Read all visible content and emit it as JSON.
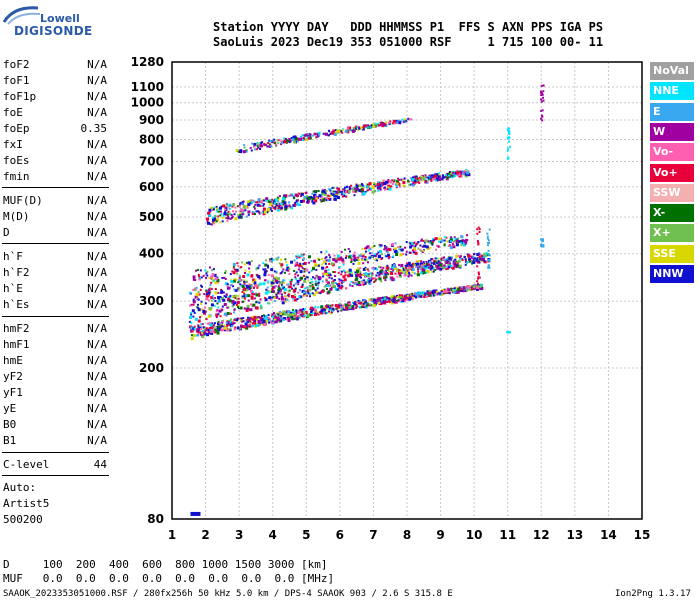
{
  "logo": {
    "top": "Lowell",
    "bottom": "DIGISONDE"
  },
  "header": {
    "row1": "Station YYYY DAY   DDD HHMMSS P1  FFS S AXN PPS IGA PS",
    "row2": "SaoLuis 2023 Dec19 353 051000 RSF     1 715 100 00- 11"
  },
  "params": [
    {
      "name": "foF2",
      "value": "N/A"
    },
    {
      "name": "foF1",
      "value": "N/A"
    },
    {
      "name": "foF1p",
      "value": "N/A"
    },
    {
      "name": "foE",
      "value": "N/A"
    },
    {
      "name": "foEp",
      "value": "0.35"
    },
    {
      "name": "fxI",
      "value": "N/A"
    },
    {
      "name": "foEs",
      "value": "N/A"
    },
    {
      "name": "fmin",
      "value": "N/A"
    },
    {
      "name": "MUF(D)",
      "value": "N/A"
    },
    {
      "name": "M(D)",
      "value": "N/A"
    },
    {
      "name": "D",
      "value": "N/A"
    },
    {
      "name": "h`F",
      "value": "N/A"
    },
    {
      "name": "h`F2",
      "value": "N/A"
    },
    {
      "name": "h`E",
      "value": "N/A"
    },
    {
      "name": "h`Es",
      "value": "N/A"
    },
    {
      "name": "hmF2",
      "value": "N/A"
    },
    {
      "name": "hmF1",
      "value": "N/A"
    },
    {
      "name": "hmE",
      "value": "N/A"
    },
    {
      "name": "yF2",
      "value": "N/A"
    },
    {
      "name": "yF1",
      "value": "N/A"
    },
    {
      "name": "yE",
      "value": "N/A"
    },
    {
      "name": "B0",
      "value": "N/A"
    },
    {
      "name": "B1",
      "value": "N/A"
    },
    {
      "name": "C-level",
      "value": "44"
    }
  ],
  "auto": {
    "line1": "Auto:",
    "line2": "Artist5",
    "line3": "500200"
  },
  "footer": {
    "d_row": "D     100  200  400  600  800 1000 1500 3000 [km]",
    "muf_row": "MUF   0.0  0.0  0.0  0.0  0.0  0.0  0.0  0.0 [MHz]",
    "status_left": "SAAOK_2023353051000.RSF / 280fx256h 50 kHz 5.0 km / DPS-4 SAAOK 903 / 2.6 S 315.8 E",
    "status_right": "Ion2Png 1.3.17"
  },
  "colors": {
    "NoVal": "#a0a0a0",
    "NNE": "#00e5ff",
    "E": "#3aa8f0",
    "W": "#a000a0",
    "Vo-": "#ff5fb0",
    "Vo+": "#e8003a",
    "SSW": "#f4b0b0",
    "X-": "#007000",
    "X+": "#6fc04f",
    "SSE": "#d8d800",
    "NNW": "#1010d0"
  },
  "chart_data": {
    "type": "scatter",
    "title": "",
    "xlabel": "",
    "ylabel": "",
    "xlim": [
      1,
      15
    ],
    "ylim": [
      80,
      1280
    ],
    "y_scale": "log",
    "grid": true,
    "x_ticks": [
      1,
      2,
      3,
      4,
      5,
      6,
      7,
      8,
      9,
      10,
      11,
      12,
      13,
      14,
      15
    ],
    "y_ticks": [
      80,
      200,
      300,
      400,
      500,
      600,
      700,
      800,
      900,
      1000,
      1100,
      1280
    ],
    "legend": [
      "NoVal",
      "NNE",
      "E",
      "W",
      "Vo-",
      "Vo+",
      "SSW",
      "X-",
      "X+",
      "SSE",
      "NNW"
    ],
    "legend_position": "right",
    "traces": [
      {
        "name": "O-trace low",
        "x_start": 1.5,
        "x_end": 10.2,
        "y_start": 250,
        "y_end": 330
      },
      {
        "name": "O-trace spread",
        "x_start": 1.5,
        "x_end": 10.4,
        "y_start": 290,
        "y_end": 395
      },
      {
        "name": "O-trace upper",
        "x_start": 1.6,
        "x_end": 9.8,
        "y_start": 335,
        "y_end": 440
      },
      {
        "name": "2nd hop",
        "x_start": 2.0,
        "x_end": 9.8,
        "y_start": 505,
        "y_end": 660
      },
      {
        "name": "3rd hop",
        "x_start": 2.9,
        "x_end": 8.1,
        "y_start": 755,
        "y_end": 910
      }
    ]
  }
}
